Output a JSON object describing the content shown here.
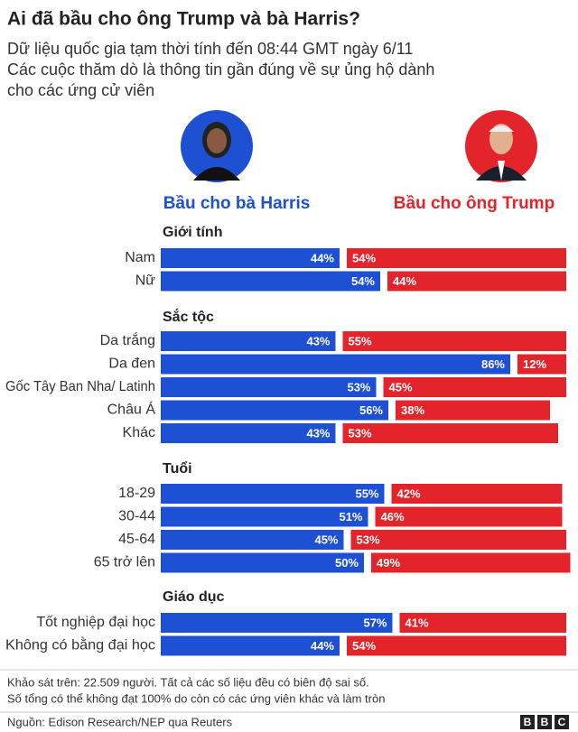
{
  "title": "Ai đã bầu cho ông Trump và bà Harris?",
  "subtitle": [
    "Dữ liệu quốc gia tạm thời tính đến 08:44 GMT ngày 6/11",
    "Các cuộc thăm dò là thông tin gần đúng về sự ủng hộ dành",
    "cho các ứng cử viên"
  ],
  "notes": [
    "Khảo sát trên: 22.509 người. Tất cả các số liệu đều có biên độ sai số.",
    "Số tổng có thể không đạt 100% do còn có các ứng viên khác và làm tròn"
  ],
  "source": "Nguồn: Edison Research/NEP qua Reuters",
  "logo": [
    "B",
    "B",
    "C"
  ],
  "chart_data": {
    "type": "bar",
    "series": [
      {
        "name": "Bầu cho bà Harris",
        "color": "#1d50d2"
      },
      {
        "name": "Bầu cho ông Trump",
        "color": "#e3252b"
      }
    ],
    "panels": [
      {
        "title": "Giới tính",
        "categories": [
          "Nam",
          "Nữ"
        ],
        "series": [
          {
            "values": [
              44,
              54
            ],
            "value_labels": [
              "44%",
              "54%"
            ]
          },
          {
            "values": [
              54,
              44
            ],
            "value_labels": [
              "54%",
              "44%"
            ]
          }
        ]
      },
      {
        "title": "Sắc tộc",
        "categories": [
          "Da trắng",
          "Da đen",
          "Gốc Tây Ban Nha/ Latinh",
          "Châu Á",
          "Khác"
        ],
        "series": [
          {
            "values": [
              43,
              86,
              53,
              56,
              43
            ],
            "value_labels": [
              "43%",
              "86%",
              "53%",
              "56%",
              "43%"
            ]
          },
          {
            "values": [
              55,
              12,
              45,
              38,
              53
            ],
            "value_labels": [
              "55%",
              "12%",
              "45%",
              "38%",
              "53%"
            ]
          }
        ]
      },
      {
        "title": "Tuổi",
        "categories": [
          "18-29",
          "30-44",
          "45-64",
          "65 trở lên"
        ],
        "series": [
          {
            "values": [
              55,
              51,
              45,
              50
            ],
            "value_labels": [
              "55%",
              "51%",
              "45%",
              "50%"
            ]
          },
          {
            "values": [
              42,
              46,
              53,
              49
            ],
            "value_labels": [
              "42%",
              "46%",
              "53%",
              "49%"
            ]
          }
        ]
      },
      {
        "title": "Giáo dục",
        "categories": [
          "Tốt nghiệp đại học",
          "Không có bằng đại học"
        ],
        "series": [
          {
            "values": [
              57,
              44
            ],
            "value_labels": [
              "57%",
              "44%"
            ]
          },
          {
            "values": [
              41,
              54
            ],
            "value_labels": [
              "41%",
              "54%"
            ]
          }
        ]
      }
    ]
  }
}
